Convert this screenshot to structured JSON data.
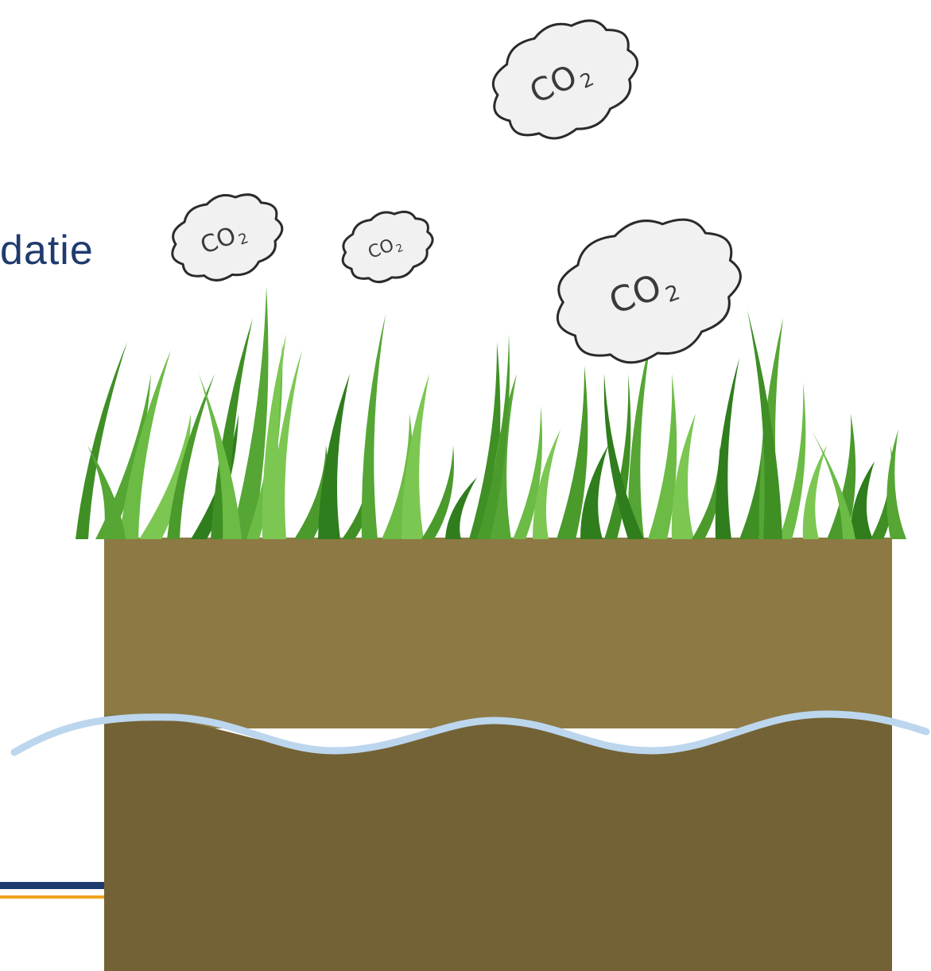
{
  "slide": {
    "title_fragment": "datie"
  },
  "clouds": [
    {
      "label": "CO",
      "subscript": "2"
    },
    {
      "label": "CO",
      "subscript": "2"
    },
    {
      "label": "CO",
      "subscript": "2"
    },
    {
      "label": "CO",
      "subscript": "2"
    }
  ],
  "colors": {
    "topsoil": "#8d7944",
    "subsoil": "#736235",
    "water_line": "#bcd6ee",
    "grass_dark": "#3f8f24",
    "grass_light": "#7cc752",
    "cloud_fill": "#f1f1f1",
    "cloud_stroke": "#2b2b2b",
    "accent_navy": "#1f3b6e",
    "accent_orange": "#f0a31d"
  }
}
